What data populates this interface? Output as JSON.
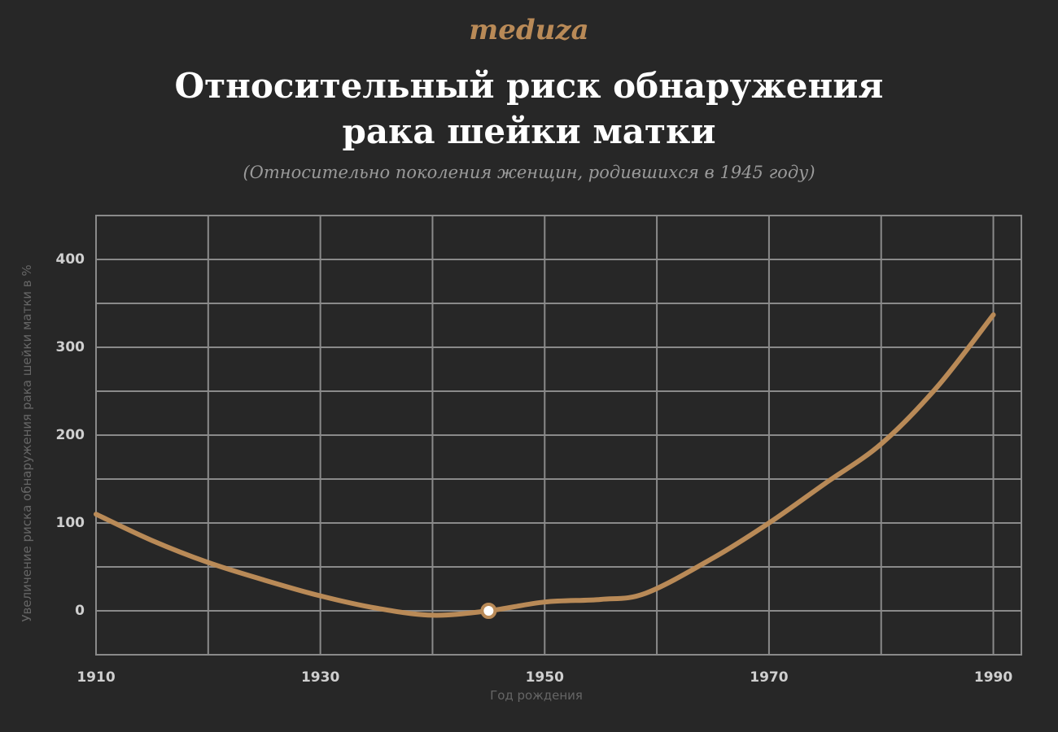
{
  "brand": "meduza",
  "chart_data": {
    "type": "line",
    "title": "Относительный риск обнаружения рака шейки матки",
    "subtitle": "(Относительно поколения женщин, родившихся в 1945 году)",
    "x_label": "Год рождения",
    "y_label": "Увеличение риска обнаружения рака шейки матки в %",
    "x": [
      1910,
      1915,
      1920,
      1925,
      1930,
      1935,
      1940,
      1945,
      1950,
      1955,
      1959,
      1965,
      1970,
      1975,
      1980,
      1985,
      1990
    ],
    "series": [
      {
        "color": "#b98a57",
        "values": [
          110,
          80,
          55,
          35,
          17,
          3,
          -5,
          0,
          10,
          13,
          20,
          60,
          100,
          145,
          190,
          255,
          337
        ]
      }
    ],
    "highlight": {
      "x": 1945,
      "y": 0
    },
    "xlim": [
      1910,
      1992.5
    ],
    "ylim": [
      -50,
      450
    ],
    "xticks": [
      1910,
      1930,
      1950,
      1970,
      1990
    ],
    "x_minor_ticks": [
      1920,
      1940,
      1960,
      1980
    ],
    "yticks": [
      0,
      100,
      200,
      300,
      400
    ],
    "y_minor_ticks": [
      -50,
      50,
      150,
      250,
      350,
      450
    ],
    "grid": true
  }
}
